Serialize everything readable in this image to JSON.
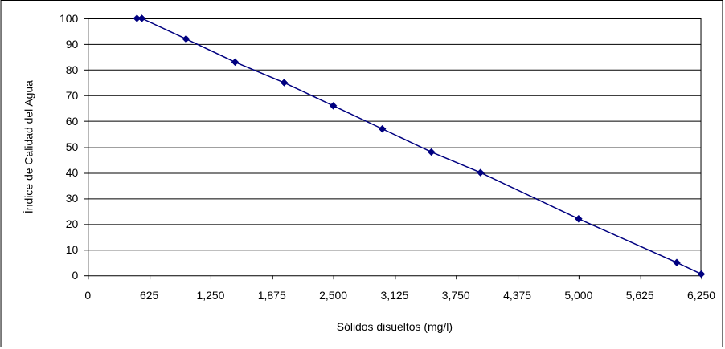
{
  "chart_data": {
    "type": "line",
    "title": "",
    "xlabel": "Sólidos disueltos (mg/l)",
    "ylabel": "Índice de Calidad del Agua",
    "xlim": [
      0,
      6250
    ],
    "ylim": [
      0,
      100
    ],
    "xticks": [
      0,
      625,
      1250,
      1875,
      2500,
      3125,
      3750,
      4375,
      5000,
      5625,
      6250
    ],
    "xtick_labels": [
      "0",
      "625",
      "1,250",
      "1,875",
      "2,500",
      "3,125",
      "3,750",
      "4,375",
      "5,000",
      "5,625",
      "6,250"
    ],
    "yticks": [
      0,
      10,
      20,
      30,
      40,
      50,
      60,
      70,
      80,
      90,
      100
    ],
    "ytick_labels": [
      "0",
      "10",
      "20",
      "30",
      "40",
      "50",
      "60",
      "70",
      "80",
      "90",
      "100"
    ],
    "grid": "horizontal",
    "legend": "none",
    "series": [
      {
        "x": [
          500,
          550,
          1000,
          1500,
          2000,
          2500,
          3000,
          3500,
          4000,
          5000,
          6000,
          6250
        ],
        "y": [
          100,
          100,
          92,
          83,
          75,
          66,
          57,
          48,
          40,
          22,
          5,
          0.5
        ],
        "color": "#000080",
        "marker": "diamond"
      }
    ]
  }
}
